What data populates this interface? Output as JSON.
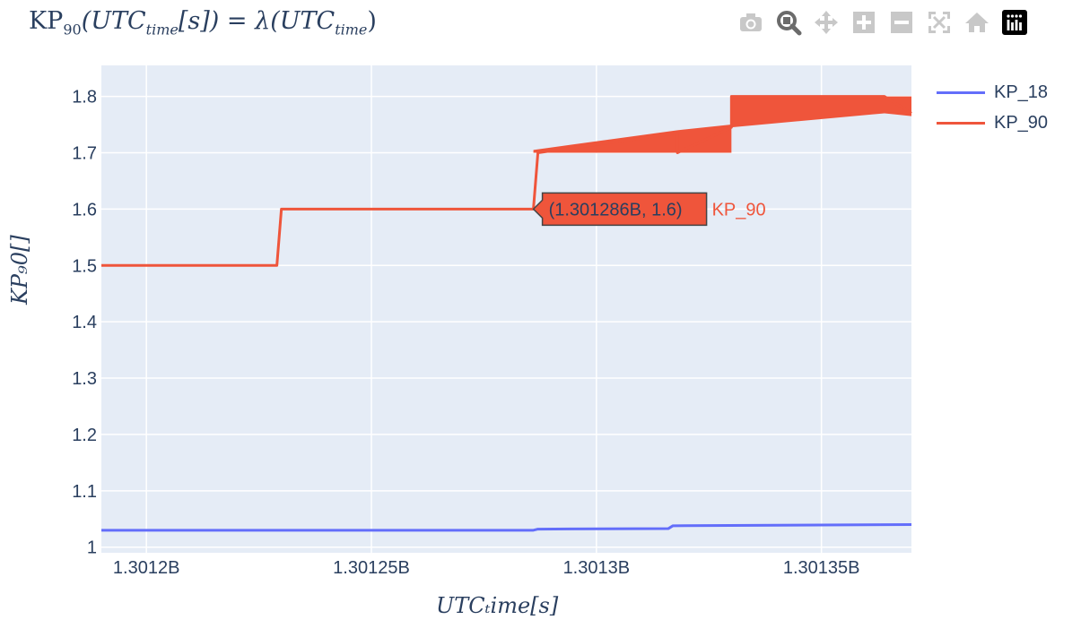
{
  "title": {
    "main": "KP",
    "sub": "90",
    "rest": "(UTC",
    "rest_sub": "time",
    "rest2": "[s]) = λ(UTC",
    "rest_sub2": "time",
    "rest3": ")"
  },
  "modebar": {
    "icons": [
      "camera-icon",
      "zoom-icon",
      "pan-icon",
      "zoom-in-icon",
      "zoom-out-icon",
      "autoscale-icon",
      "reset-axes-icon",
      "plotly-logo-icon"
    ]
  },
  "axis_labels": {
    "y": "KP₉0[]",
    "x": "UTCₜime[s]"
  },
  "legend": [
    {
      "name": "KP_18",
      "color": "#636efa"
    },
    {
      "name": "KP_90",
      "color": "#ef553b"
    }
  ],
  "tooltip": {
    "text": "(1.301286B, 1.6)",
    "series": "KP_90"
  },
  "colors": {
    "plot_bg": "#e5ecf6",
    "grid": "#ffffff",
    "kp18": "#636efa",
    "kp90": "#ef553b"
  },
  "chart_data": {
    "type": "line",
    "xlim": [
      1.30119,
      1.30137
    ],
    "ylim": [
      0.99,
      1.855
    ],
    "x_ticks": [
      1.3012,
      1.30125,
      1.3013,
      1.30135
    ],
    "x_tick_labels": [
      "1.3012B",
      "1.30125B",
      "1.3013B",
      "1.30135B"
    ],
    "y_ticks": [
      1,
      1.1,
      1.2,
      1.3,
      1.4,
      1.5,
      1.6,
      1.7,
      1.8
    ],
    "y_tick_labels": [
      "1",
      "1.1",
      "1.2",
      "1.3",
      "1.4",
      "1.5",
      "1.6",
      "1.7",
      "1.8"
    ],
    "series": [
      {
        "name": "KP_90",
        "x": [
          1.30119,
          1.301229,
          1.30123,
          1.301285,
          1.301286,
          1.301287,
          1.301318,
          1.301318,
          1.30133,
          1.30133,
          1.301364,
          1.30137
        ],
        "y": [
          1.5,
          1.5,
          1.6,
          1.6,
          1.6,
          1.7,
          1.735,
          1.7,
          1.745,
          1.8,
          1.8,
          1.77
        ],
        "band": {
          "x": [
            1.301286,
            1.301318,
            1.301318,
            1.30133,
            1.30133,
            1.301364,
            1.30137
          ],
          "upper": [
            1.705,
            1.74,
            1.74,
            1.75,
            1.8,
            1.8,
            1.8
          ],
          "lower": [
            1.7,
            1.7,
            1.7,
            1.7,
            1.745,
            1.77,
            1.765
          ]
        }
      },
      {
        "name": "KP_18",
        "x": [
          1.30119,
          1.301286,
          1.301287,
          1.301316,
          1.301317,
          1.30137
        ],
        "y": [
          1.03,
          1.03,
          1.032,
          1.033,
          1.038,
          1.04
        ]
      }
    ]
  }
}
